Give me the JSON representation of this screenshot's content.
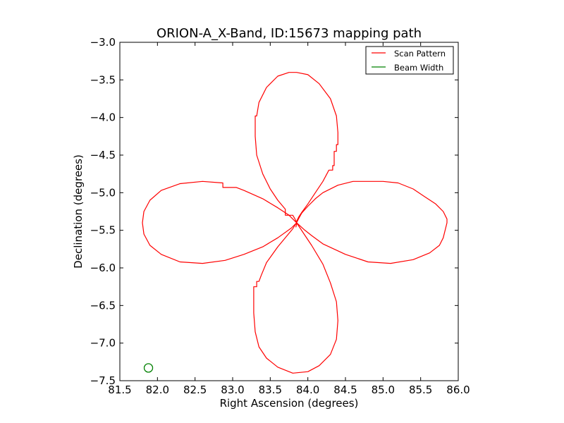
{
  "chart_data": {
    "type": "line",
    "title": "ORION-A_X-Band, ID:15673 mapping path",
    "xlabel": "Right Ascension (degrees)",
    "ylabel": "Declination (degrees)",
    "xlim": [
      81.5,
      86.0
    ],
    "ylim": [
      -7.5,
      -3.0
    ],
    "xticks": [
      81.5,
      82.0,
      82.5,
      83.0,
      83.5,
      84.0,
      84.5,
      85.0,
      85.5,
      86.0
    ],
    "xtick_labels": [
      "81.5",
      "82.0",
      "82.5",
      "83.0",
      "83.5",
      "84.0",
      "84.5",
      "85.0",
      "85.5",
      "86.0"
    ],
    "yticks": [
      -3.0,
      -3.5,
      -4.0,
      -4.5,
      -5.0,
      -5.5,
      -6.0,
      -6.5,
      -7.0,
      -7.5
    ],
    "ytick_labels": [
      "−3.0",
      "−3.5",
      "−4.0",
      "−4.5",
      "−5.0",
      "−5.5",
      "−6.0",
      "−6.5",
      "−7.0",
      "−7.5"
    ],
    "grid": false,
    "legend_position": "top-right",
    "series": [
      {
        "name": "Scan Pattern",
        "color": "#ff0000",
        "points": [
          [
            83.85,
            -5.4
          ],
          [
            83.88,
            -5.34
          ],
          [
            83.92,
            -5.27
          ],
          [
            84.0,
            -5.18
          ],
          [
            84.1,
            -5.08
          ],
          [
            84.2,
            -5.0
          ],
          [
            84.4,
            -4.9
          ],
          [
            84.6,
            -4.85
          ],
          [
            85.0,
            -4.85
          ],
          [
            85.2,
            -4.87
          ],
          [
            85.4,
            -4.95
          ],
          [
            85.55,
            -5.05
          ],
          [
            85.7,
            -5.15
          ],
          [
            85.8,
            -5.25
          ],
          [
            85.85,
            -5.35
          ],
          [
            85.85,
            -5.4
          ],
          [
            85.83,
            -5.48
          ],
          [
            85.8,
            -5.6
          ],
          [
            85.75,
            -5.7
          ],
          [
            85.62,
            -5.8
          ],
          [
            85.4,
            -5.89
          ],
          [
            85.1,
            -5.94
          ],
          [
            84.8,
            -5.92
          ],
          [
            84.5,
            -5.82
          ],
          [
            84.2,
            -5.68
          ],
          [
            84.05,
            -5.57
          ],
          [
            83.95,
            -5.49
          ],
          [
            83.85,
            -5.4
          ],
          [
            83.83,
            -5.43
          ],
          [
            83.8,
            -5.48
          ],
          [
            83.7,
            -5.6
          ],
          [
            83.6,
            -5.72
          ],
          [
            83.45,
            -5.93
          ],
          [
            83.38,
            -6.1
          ],
          [
            83.35,
            -6.18
          ],
          [
            83.32,
            -6.18
          ],
          [
            83.32,
            -6.25
          ],
          [
            83.28,
            -6.25
          ],
          [
            83.28,
            -6.6
          ],
          [
            83.3,
            -6.85
          ],
          [
            83.35,
            -7.05
          ],
          [
            83.45,
            -7.2
          ],
          [
            83.6,
            -7.32
          ],
          [
            83.8,
            -7.4
          ],
          [
            84.0,
            -7.38
          ],
          [
            84.15,
            -7.3
          ],
          [
            84.3,
            -7.15
          ],
          [
            84.38,
            -6.95
          ],
          [
            84.4,
            -6.7
          ],
          [
            84.38,
            -6.45
          ],
          [
            84.3,
            -6.2
          ],
          [
            84.2,
            -5.95
          ],
          [
            84.05,
            -5.7
          ],
          [
            83.95,
            -5.55
          ],
          [
            83.85,
            -5.4
          ],
          [
            83.82,
            -5.37
          ],
          [
            83.75,
            -5.3
          ],
          [
            83.6,
            -5.2
          ],
          [
            83.4,
            -5.08
          ],
          [
            83.15,
            -4.97
          ],
          [
            83.05,
            -4.93
          ],
          [
            82.87,
            -4.93
          ],
          [
            82.87,
            -4.87
          ],
          [
            82.6,
            -4.85
          ],
          [
            82.3,
            -4.88
          ],
          [
            82.05,
            -4.97
          ],
          [
            81.9,
            -5.1
          ],
          [
            81.82,
            -5.25
          ],
          [
            81.8,
            -5.4
          ],
          [
            81.82,
            -5.55
          ],
          [
            81.9,
            -5.7
          ],
          [
            82.05,
            -5.82
          ],
          [
            82.3,
            -5.92
          ],
          [
            82.6,
            -5.94
          ],
          [
            82.9,
            -5.9
          ],
          [
            83.15,
            -5.82
          ],
          [
            83.4,
            -5.72
          ],
          [
            83.6,
            -5.6
          ],
          [
            83.78,
            -5.47
          ],
          [
            83.85,
            -5.4
          ],
          [
            83.83,
            -5.35
          ],
          [
            83.8,
            -5.3
          ],
          [
            83.7,
            -5.3
          ],
          [
            83.7,
            -5.22
          ],
          [
            83.6,
            -5.1
          ],
          [
            83.5,
            -4.95
          ],
          [
            83.4,
            -4.75
          ],
          [
            83.32,
            -4.5
          ],
          [
            83.3,
            -4.25
          ],
          [
            83.3,
            -3.98
          ],
          [
            83.32,
            -3.98
          ],
          [
            83.35,
            -3.8
          ],
          [
            83.45,
            -3.6
          ],
          [
            83.6,
            -3.45
          ],
          [
            83.75,
            -3.4
          ],
          [
            83.85,
            -3.4
          ],
          [
            84.0,
            -3.43
          ],
          [
            84.15,
            -3.55
          ],
          [
            84.3,
            -3.75
          ],
          [
            84.38,
            -3.98
          ],
          [
            84.4,
            -4.2
          ],
          [
            84.4,
            -4.36
          ],
          [
            84.38,
            -4.36
          ],
          [
            84.38,
            -4.45
          ],
          [
            84.35,
            -4.45
          ],
          [
            84.35,
            -4.64
          ],
          [
            84.33,
            -4.64
          ],
          [
            84.33,
            -4.7
          ],
          [
            84.28,
            -4.7
          ],
          [
            84.2,
            -4.85
          ],
          [
            84.1,
            -5.0
          ],
          [
            84.0,
            -5.15
          ],
          [
            83.92,
            -5.26
          ],
          [
            83.88,
            -5.32
          ],
          [
            83.85,
            -5.38
          ],
          [
            83.85,
            -5.42
          ],
          [
            83.84,
            -5.46
          ]
        ]
      },
      {
        "name": "Beam Width",
        "color": "#008000",
        "marker": "circle",
        "points": [
          [
            81.88,
            -7.33
          ]
        ]
      }
    ]
  }
}
